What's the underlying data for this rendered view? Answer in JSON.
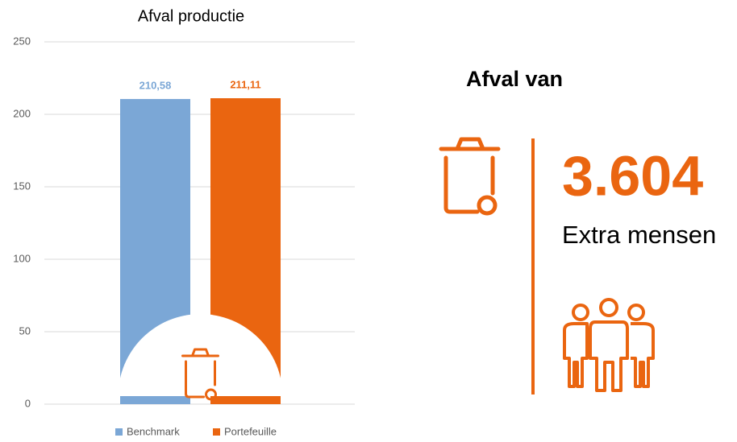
{
  "chart_data": {
    "type": "bar",
    "title": "Afval productie",
    "categories": [
      null
    ],
    "series": [
      {
        "name": "Benchmark",
        "color": "#7ba7d6",
        "values": [
          210.58
        ],
        "value_labels": [
          "210,58"
        ]
      },
      {
        "name": "Portefeuille",
        "color": "#ea6510",
        "values": [
          211.11
        ],
        "value_labels": [
          "211,11"
        ]
      }
    ],
    "ylim": [
      0,
      250
    ],
    "yticks": [
      0,
      50,
      100,
      150,
      200,
      250
    ],
    "grid": true,
    "legend": "bottom"
  },
  "panel": {
    "heading": "Afval van",
    "count": "3.604",
    "caption": "Extra mensen",
    "color": "#ea6510"
  }
}
